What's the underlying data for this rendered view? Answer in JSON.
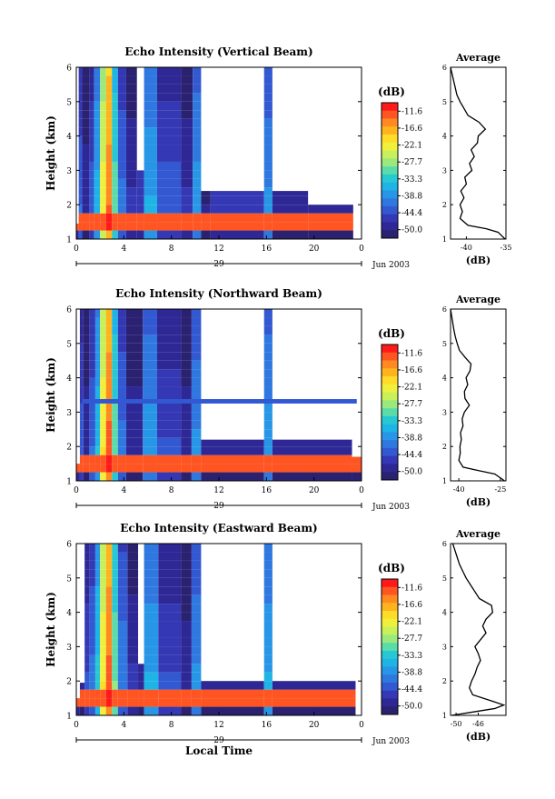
{
  "figure": {
    "xlabel": "Local Time",
    "date_label": "Jun 2003",
    "day_label": "29",
    "ylabel": "Height (km)",
    "cbar_unit": "(dB)",
    "avg_title": "Average",
    "avg_xlabel": "(dB)"
  },
  "chart_data": [
    {
      "type": "heatmap",
      "title": "Echo Intensity (Vertical Beam)",
      "xlabel": "",
      "ylabel": "Height (km)",
      "xticks": [
        "0",
        "4",
        "8",
        "12",
        "16",
        "20",
        "0"
      ],
      "xlim": [
        0,
        24
      ],
      "yticks": [
        "1",
        "2",
        "3",
        "4",
        "5",
        "6"
      ],
      "ylim": [
        1,
        6
      ],
      "colorbar": {
        "label": "(dB)",
        "ticks": [
          "-11.6",
          "-16.6",
          "-22.1",
          "-27.7",
          "-33.3",
          "-38.8",
          "-44.4",
          "-50.0"
        ],
        "colors": [
          "#ff1a1a",
          "#ff5522",
          "#ff8a20",
          "#ffb41e",
          "#ffdc28",
          "#f0f03c",
          "#c8f05a",
          "#9be87c",
          "#5adcaa",
          "#28c8d2",
          "#1eb4e6",
          "#2896e6",
          "#2e78e0",
          "#3258d2",
          "#3438b4",
          "#2e2896",
          "#2a2270"
        ]
      },
      "columns": [
        {
          "t0": 0.0,
          "t1": 0.2,
          "top": 1.45,
          "value": -44
        },
        {
          "t0": 0.2,
          "t1": 0.5,
          "top": 6.0,
          "value": -41
        },
        {
          "t0": 0.5,
          "t1": 1.1,
          "top": 6.0,
          "value": -46
        },
        {
          "t0": 1.1,
          "t1": 1.5,
          "top": 6.0,
          "value": -42
        },
        {
          "t0": 1.5,
          "t1": 2.0,
          "top": 6.0,
          "value": -35
        },
        {
          "t0": 2.0,
          "t1": 2.5,
          "top": 6.0,
          "value": -23
        },
        {
          "t0": 2.5,
          "t1": 3.0,
          "top": 6.0,
          "value": -15
        },
        {
          "t0": 3.0,
          "t1": 3.5,
          "top": 6.0,
          "value": -30
        },
        {
          "t0": 3.5,
          "t1": 4.2,
          "top": 6.0,
          "value": -40
        },
        {
          "t0": 4.2,
          "t1": 5.1,
          "top": 6.0,
          "value": -45
        },
        {
          "t0": 5.1,
          "t1": 5.7,
          "top": 3.0,
          "value": -44
        },
        {
          "t0": 5.7,
          "t1": 6.8,
          "top": 6.0,
          "value": -36
        },
        {
          "t0": 6.8,
          "t1": 8.8,
          "top": 6.0,
          "value": -42
        },
        {
          "t0": 8.8,
          "t1": 9.8,
          "top": 6.0,
          "value": -45
        },
        {
          "t0": 9.8,
          "t1": 10.5,
          "top": 6.0,
          "value": -37
        },
        {
          "t0": 10.5,
          "t1": 11.3,
          "top": 2.4,
          "value": -48
        },
        {
          "t0": 11.3,
          "t1": 15.8,
          "top": 2.4,
          "value": -45
        },
        {
          "t0": 15.8,
          "t1": 16.5,
          "top": 6.0,
          "value": -38
        },
        {
          "t0": 16.5,
          "t1": 19.5,
          "top": 2.4,
          "value": -46
        },
        {
          "t0": 19.5,
          "t1": 23.3,
          "top": 2.0,
          "value": -46
        }
      ],
      "average_profile": {
        "xticks": [
          "-40",
          "-35"
        ],
        "xlim": [
          -42,
          -35
        ],
        "height": [
          1.0,
          1.2,
          1.3,
          1.4,
          1.6,
          1.8,
          2.0,
          2.2,
          2.4,
          2.6,
          2.8,
          3.0,
          3.2,
          3.4,
          3.6,
          3.8,
          4.0,
          4.2,
          4.4,
          4.6,
          4.8,
          5.0,
          5.2,
          5.4,
          5.6,
          5.8,
          6.0
        ],
        "value": [
          -35.1,
          -36.0,
          -37.5,
          -39.8,
          -40.8,
          -40.5,
          -40.8,
          -40.3,
          -40.7,
          -40.0,
          -40.2,
          -39.3,
          -39.6,
          -39.0,
          -39.4,
          -38.6,
          -38.5,
          -37.6,
          -38.4,
          -39.8,
          -40.3,
          -40.8,
          -41.2,
          -41.4,
          -41.6,
          -41.8,
          -42.0
        ]
      }
    },
    {
      "type": "heatmap",
      "title": "Echo Intensity (Northward Beam)",
      "xlabel": "",
      "ylabel": "Height (km)",
      "xticks": [
        "0",
        "4",
        "8",
        "12",
        "16",
        "20",
        "0"
      ],
      "xlim": [
        0,
        24
      ],
      "yticks": [
        "1",
        "2",
        "3",
        "4",
        "5",
        "6"
      ],
      "ylim": [
        1,
        6
      ],
      "colorbar": {
        "label": "(dB)",
        "ticks": [
          "-11.6",
          "-16.6",
          "-22.1",
          "-27.7",
          "-33.3",
          "-38.8",
          "-44.4",
          "-50.0"
        ],
        "colors": [
          "#ff1a1a",
          "#ff5522",
          "#ff8a20",
          "#ffb41e",
          "#ffdc28",
          "#f0f03c",
          "#c8f05a",
          "#9be87c",
          "#5adcaa",
          "#28c8d2",
          "#1eb4e6",
          "#2896e6",
          "#2e78e0",
          "#3258d2",
          "#3438b4",
          "#2e2896",
          "#2a2270"
        ]
      },
      "columns": [
        {
          "t0": 0.0,
          "t1": 0.3,
          "top": 1.5,
          "value": -44
        },
        {
          "t0": 0.3,
          "t1": 0.6,
          "top": 6.0,
          "value": -42
        },
        {
          "t0": 0.6,
          "t1": 1.1,
          "top": 6.0,
          "value": -46
        },
        {
          "t0": 1.1,
          "t1": 1.6,
          "top": 6.0,
          "value": -41
        },
        {
          "t0": 1.6,
          "t1": 2.0,
          "top": 6.0,
          "value": -34
        },
        {
          "t0": 2.0,
          "t1": 2.5,
          "top": 6.0,
          "value": -22
        },
        {
          "t0": 2.5,
          "t1": 3.0,
          "top": 6.0,
          "value": -14
        },
        {
          "t0": 3.0,
          "t1": 3.5,
          "top": 6.0,
          "value": -30
        },
        {
          "t0": 3.5,
          "t1": 4.2,
          "top": 6.0,
          "value": -40
        },
        {
          "t0": 4.2,
          "t1": 5.6,
          "top": 6.0,
          "value": -46
        },
        {
          "t0": 5.6,
          "t1": 6.8,
          "top": 6.0,
          "value": -37
        },
        {
          "t0": 6.8,
          "t1": 8.8,
          "top": 6.0,
          "value": -43
        },
        {
          "t0": 8.8,
          "t1": 9.7,
          "top": 6.0,
          "value": -46
        },
        {
          "t0": 9.7,
          "t1": 10.5,
          "top": 6.0,
          "value": -38
        },
        {
          "t0": 10.5,
          "t1": 15.8,
          "top": 2.2,
          "value": -46
        },
        {
          "t0": 15.8,
          "t1": 16.5,
          "top": 6.0,
          "value": -37
        },
        {
          "t0": 16.5,
          "t1": 23.2,
          "top": 2.2,
          "value": -46
        },
        {
          "t0": 23.2,
          "t1": 24.0,
          "top": 1.7,
          "value": -47
        }
      ],
      "bands": [
        {
          "t0": 0.5,
          "t1": 23.6,
          "h0": 3.25,
          "h1": 3.38,
          "value": -44
        }
      ],
      "average_profile": {
        "xticks": [
          "-40",
          "-25"
        ],
        "xlim": [
          -43,
          -23
        ],
        "height": [
          1.0,
          1.2,
          1.3,
          1.4,
          1.6,
          1.8,
          2.0,
          2.2,
          2.4,
          2.6,
          2.8,
          3.0,
          3.2,
          3.4,
          3.6,
          3.8,
          4.0,
          4.2,
          4.4,
          4.6,
          4.8,
          5.0,
          5.2,
          5.4,
          5.6,
          5.8,
          6.0
        ],
        "value": [
          -23.5,
          -27.0,
          -33.0,
          -38.5,
          -40.0,
          -39.5,
          -39.6,
          -39.1,
          -39.4,
          -38.5,
          -38.8,
          -38.0,
          -36.2,
          -37.8,
          -38.0,
          -36.8,
          -37.4,
          -36.0,
          -35.6,
          -37.8,
          -39.8,
          -40.6,
          -41.3,
          -41.8,
          -42.2,
          -42.6,
          -43.0
        ]
      }
    },
    {
      "type": "heatmap",
      "title": "Echo Intensity (Eastward Beam)",
      "xlabel": "Local Time",
      "ylabel": "Height (km)",
      "xticks": [
        "0",
        "4",
        "8",
        "12",
        "16",
        "20",
        "0"
      ],
      "xlim": [
        0,
        24
      ],
      "yticks": [
        "1",
        "2",
        "3",
        "4",
        "5",
        "6"
      ],
      "ylim": [
        1,
        6
      ],
      "colorbar": {
        "label": "(dB)",
        "ticks": [
          "-11.6",
          "-16.6",
          "-22.1",
          "-27.7",
          "-33.3",
          "-38.8",
          "-44.4",
          "-50.0"
        ],
        "colors": [
          "#ff1a1a",
          "#ff5522",
          "#ff8a20",
          "#ffb41e",
          "#ffdc28",
          "#f0f03c",
          "#c8f05a",
          "#9be87c",
          "#5adcaa",
          "#28c8d2",
          "#1eb4e6",
          "#2896e6",
          "#2e78e0",
          "#3258d2",
          "#3438b4",
          "#2e2896",
          "#2a2270"
        ]
      },
      "columns": [
        {
          "t0": 0.0,
          "t1": 0.3,
          "top": 1.5,
          "value": -44
        },
        {
          "t0": 0.3,
          "t1": 0.7,
          "top": 1.95,
          "value": -46
        },
        {
          "t0": 0.7,
          "t1": 1.1,
          "top": 6.0,
          "value": -43
        },
        {
          "t0": 1.1,
          "t1": 1.6,
          "top": 6.0,
          "value": -40
        },
        {
          "t0": 1.6,
          "t1": 2.0,
          "top": 6.0,
          "value": -33
        },
        {
          "t0": 2.0,
          "t1": 2.5,
          "top": 6.0,
          "value": -22
        },
        {
          "t0": 2.5,
          "t1": 3.0,
          "top": 6.0,
          "value": -14
        },
        {
          "t0": 3.0,
          "t1": 3.5,
          "top": 6.0,
          "value": -29
        },
        {
          "t0": 3.5,
          "t1": 4.3,
          "top": 6.0,
          "value": -39
        },
        {
          "t0": 4.3,
          "t1": 5.2,
          "top": 6.0,
          "value": -45
        },
        {
          "t0": 5.2,
          "t1": 5.7,
          "top": 2.5,
          "value": -46
        },
        {
          "t0": 5.7,
          "t1": 6.9,
          "top": 6.0,
          "value": -36
        },
        {
          "t0": 6.9,
          "t1": 8.8,
          "top": 6.0,
          "value": -43
        },
        {
          "t0": 8.8,
          "t1": 9.7,
          "top": 6.0,
          "value": -46
        },
        {
          "t0": 9.7,
          "t1": 10.5,
          "top": 6.0,
          "value": -38
        },
        {
          "t0": 10.5,
          "t1": 15.8,
          "top": 2.0,
          "value": -46
        },
        {
          "t0": 15.8,
          "t1": 16.5,
          "top": 6.0,
          "value": -36
        },
        {
          "t0": 16.5,
          "t1": 23.5,
          "top": 2.0,
          "value": -46
        }
      ],
      "average_profile": {
        "xticks": [
          "-46",
          "-50"
        ],
        "xlim": [
          -51,
          -41
        ],
        "height": [
          1.0,
          1.2,
          1.3,
          1.4,
          1.6,
          1.8,
          2.0,
          2.2,
          2.4,
          2.6,
          2.8,
          3.0,
          3.2,
          3.4,
          3.6,
          3.8,
          4.0,
          4.2,
          4.4,
          4.6,
          4.8,
          5.0,
          5.2,
          5.4,
          5.6,
          5.8,
          6.0
        ],
        "value": [
          -50.8,
          -43.0,
          -41.4,
          -43.2,
          -47.0,
          -47.6,
          -47.2,
          -46.6,
          -46.2,
          -45.6,
          -46.0,
          -46.6,
          -45.6,
          -44.6,
          -45.2,
          -44.6,
          -43.4,
          -43.6,
          -45.8,
          -46.6,
          -47.4,
          -48.2,
          -48.8,
          -49.4,
          -49.8,
          -50.2,
          -50.6
        ]
      }
    }
  ]
}
